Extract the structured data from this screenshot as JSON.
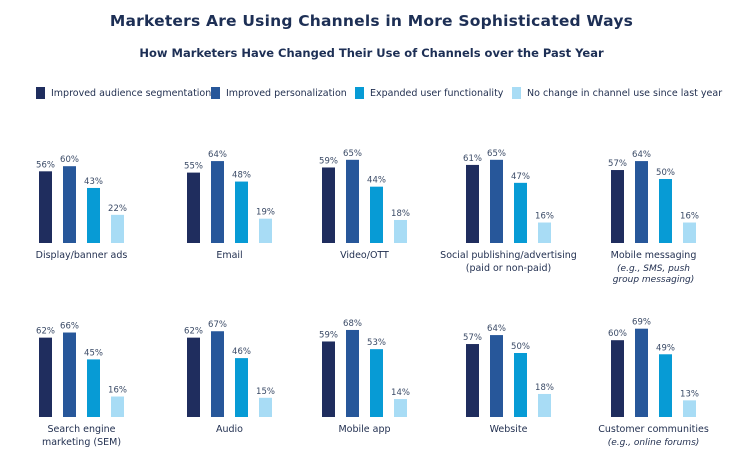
{
  "title": "Marketers Are Using Channels in More Sophisticated Ways",
  "subtitle": "How Marketers Have Changed Their Use of Channels over the Past Year",
  "legend": [
    {
      "label": "Improved audience segmentation",
      "color": "#1f2d5e"
    },
    {
      "label": "Improved personalization",
      "color": "#27579a"
    },
    {
      "label": "Expanded user functionality",
      "color": "#079bd5"
    },
    {
      "label": "No change in channel use since last year",
      "color": "#a8dcf5"
    }
  ],
  "chart_data": {
    "type": "bar",
    "series": [
      {
        "name": "Improved audience segmentation",
        "color": "#1f2d5e"
      },
      {
        "name": "Improved personalization",
        "color": "#27579a"
      },
      {
        "name": "Expanded user functionality",
        "color": "#079bd5"
      },
      {
        "name": "No change in channel use since last year",
        "color": "#a8dcf5"
      }
    ],
    "groups": [
      {
        "lines": [
          "Display/banner ads"
        ],
        "italic": [],
        "values": [
          56,
          60,
          43,
          22
        ]
      },
      {
        "lines": [
          "Email"
        ],
        "italic": [],
        "values": [
          55,
          64,
          48,
          19
        ]
      },
      {
        "lines": [
          "Video/OTT"
        ],
        "italic": [],
        "values": [
          59,
          65,
          44,
          18
        ]
      },
      {
        "lines": [
          "Social publishing/advertising"
        ],
        "italic": [
          "(paid or non-paid)"
        ],
        "values": [
          61,
          65,
          47,
          16
        ]
      },
      {
        "lines": [
          "Mobile messaging"
        ],
        "italic": [
          "(e.g., SMS, push",
          "group messaging)"
        ],
        "values": [
          57,
          64,
          50,
          16
        ]
      },
      {
        "lines": [
          "Search engine",
          "marketing (SEM)"
        ],
        "italic": [],
        "values": [
          62,
          66,
          45,
          16
        ]
      },
      {
        "lines": [
          "Audio"
        ],
        "italic": [],
        "values": [
          62,
          67,
          46,
          15
        ]
      },
      {
        "lines": [
          "Mobile app"
        ],
        "italic": [],
        "values": [
          59,
          68,
          53,
          14
        ]
      },
      {
        "lines": [
          "Website"
        ],
        "italic": [],
        "values": [
          57,
          64,
          50,
          18
        ]
      },
      {
        "lines": [
          "Customer communities"
        ],
        "italic": [
          "(e.g., online forums)"
        ],
        "values": [
          60,
          69,
          49,
          13
        ]
      }
    ],
    "value_suffix": "%"
  }
}
